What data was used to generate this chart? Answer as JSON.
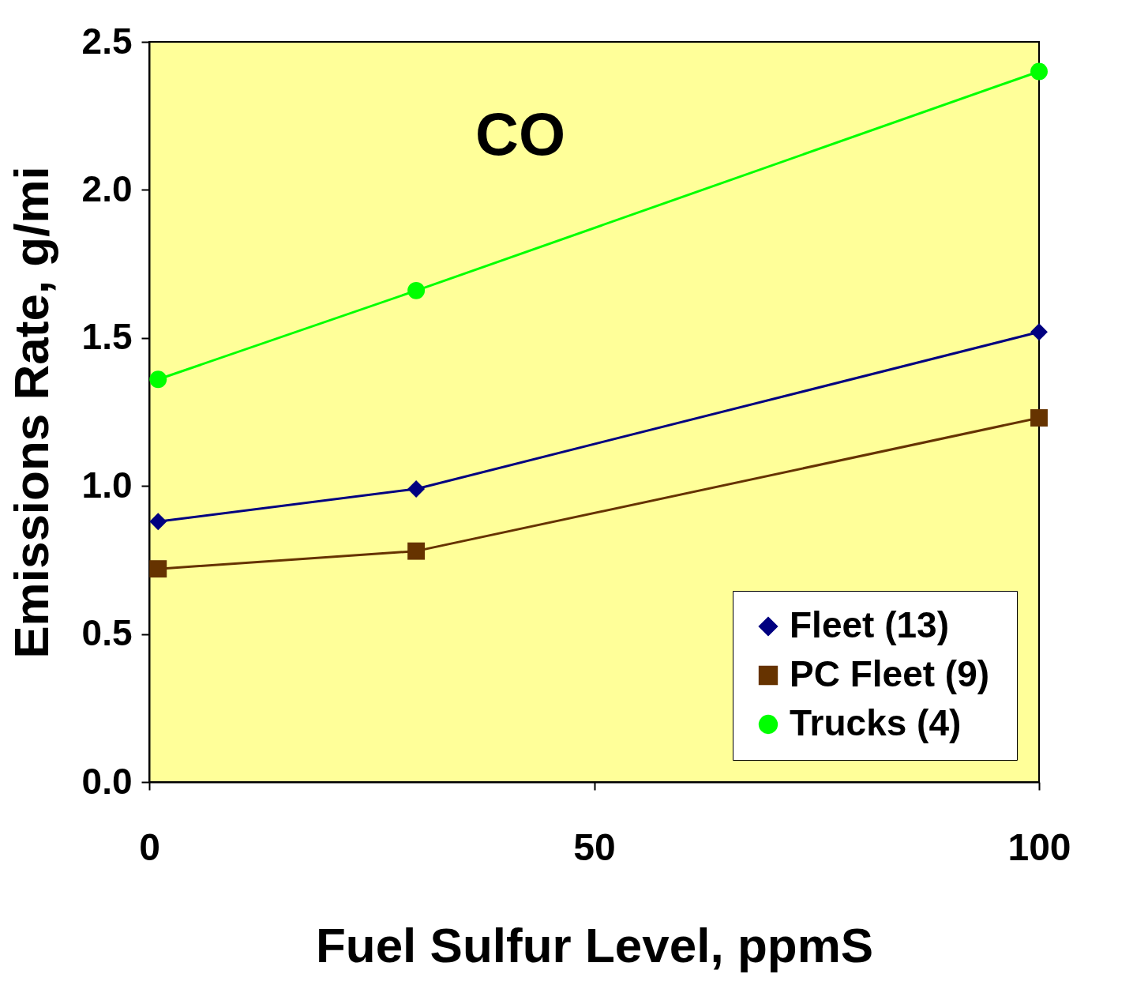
{
  "chart_data": {
    "type": "line",
    "xlabel": "Fuel Sulfur Level,  ppmS",
    "ylabel": "Emissions Rate,  g/mi",
    "annotations": [
      "CO"
    ],
    "x": [
      1,
      30,
      100
    ],
    "series": [
      {
        "name": "Fleet (13)",
        "color": "#000080",
        "marker": "diamond",
        "values": [
          0.88,
          0.99,
          1.52
        ]
      },
      {
        "name": "PC  Fleet (9)",
        "color": "#663300",
        "marker": "square",
        "values": [
          0.72,
          0.78,
          1.23
        ]
      },
      {
        "name": "Trucks (4)",
        "color": "#00ff00",
        "marker": "circle",
        "values": [
          1.36,
          1.66,
          2.4
        ]
      }
    ],
    "xlim": [
      0,
      100
    ],
    "xticks": [
      0,
      50,
      100
    ],
    "ylim": [
      0,
      2.5
    ],
    "yticks": [
      {
        "value": 0,
        "label": "0.0"
      },
      {
        "value": 0.5,
        "label": "0.5"
      },
      {
        "value": 1,
        "label": "1.0"
      },
      {
        "value": 1.5,
        "label": "1.5"
      },
      {
        "value": 2,
        "label": "2.0"
      },
      {
        "value": 2.5,
        "label": "2.5"
      }
    ],
    "legend": "bottom right",
    "line_style": "solid",
    "grid": false
  }
}
